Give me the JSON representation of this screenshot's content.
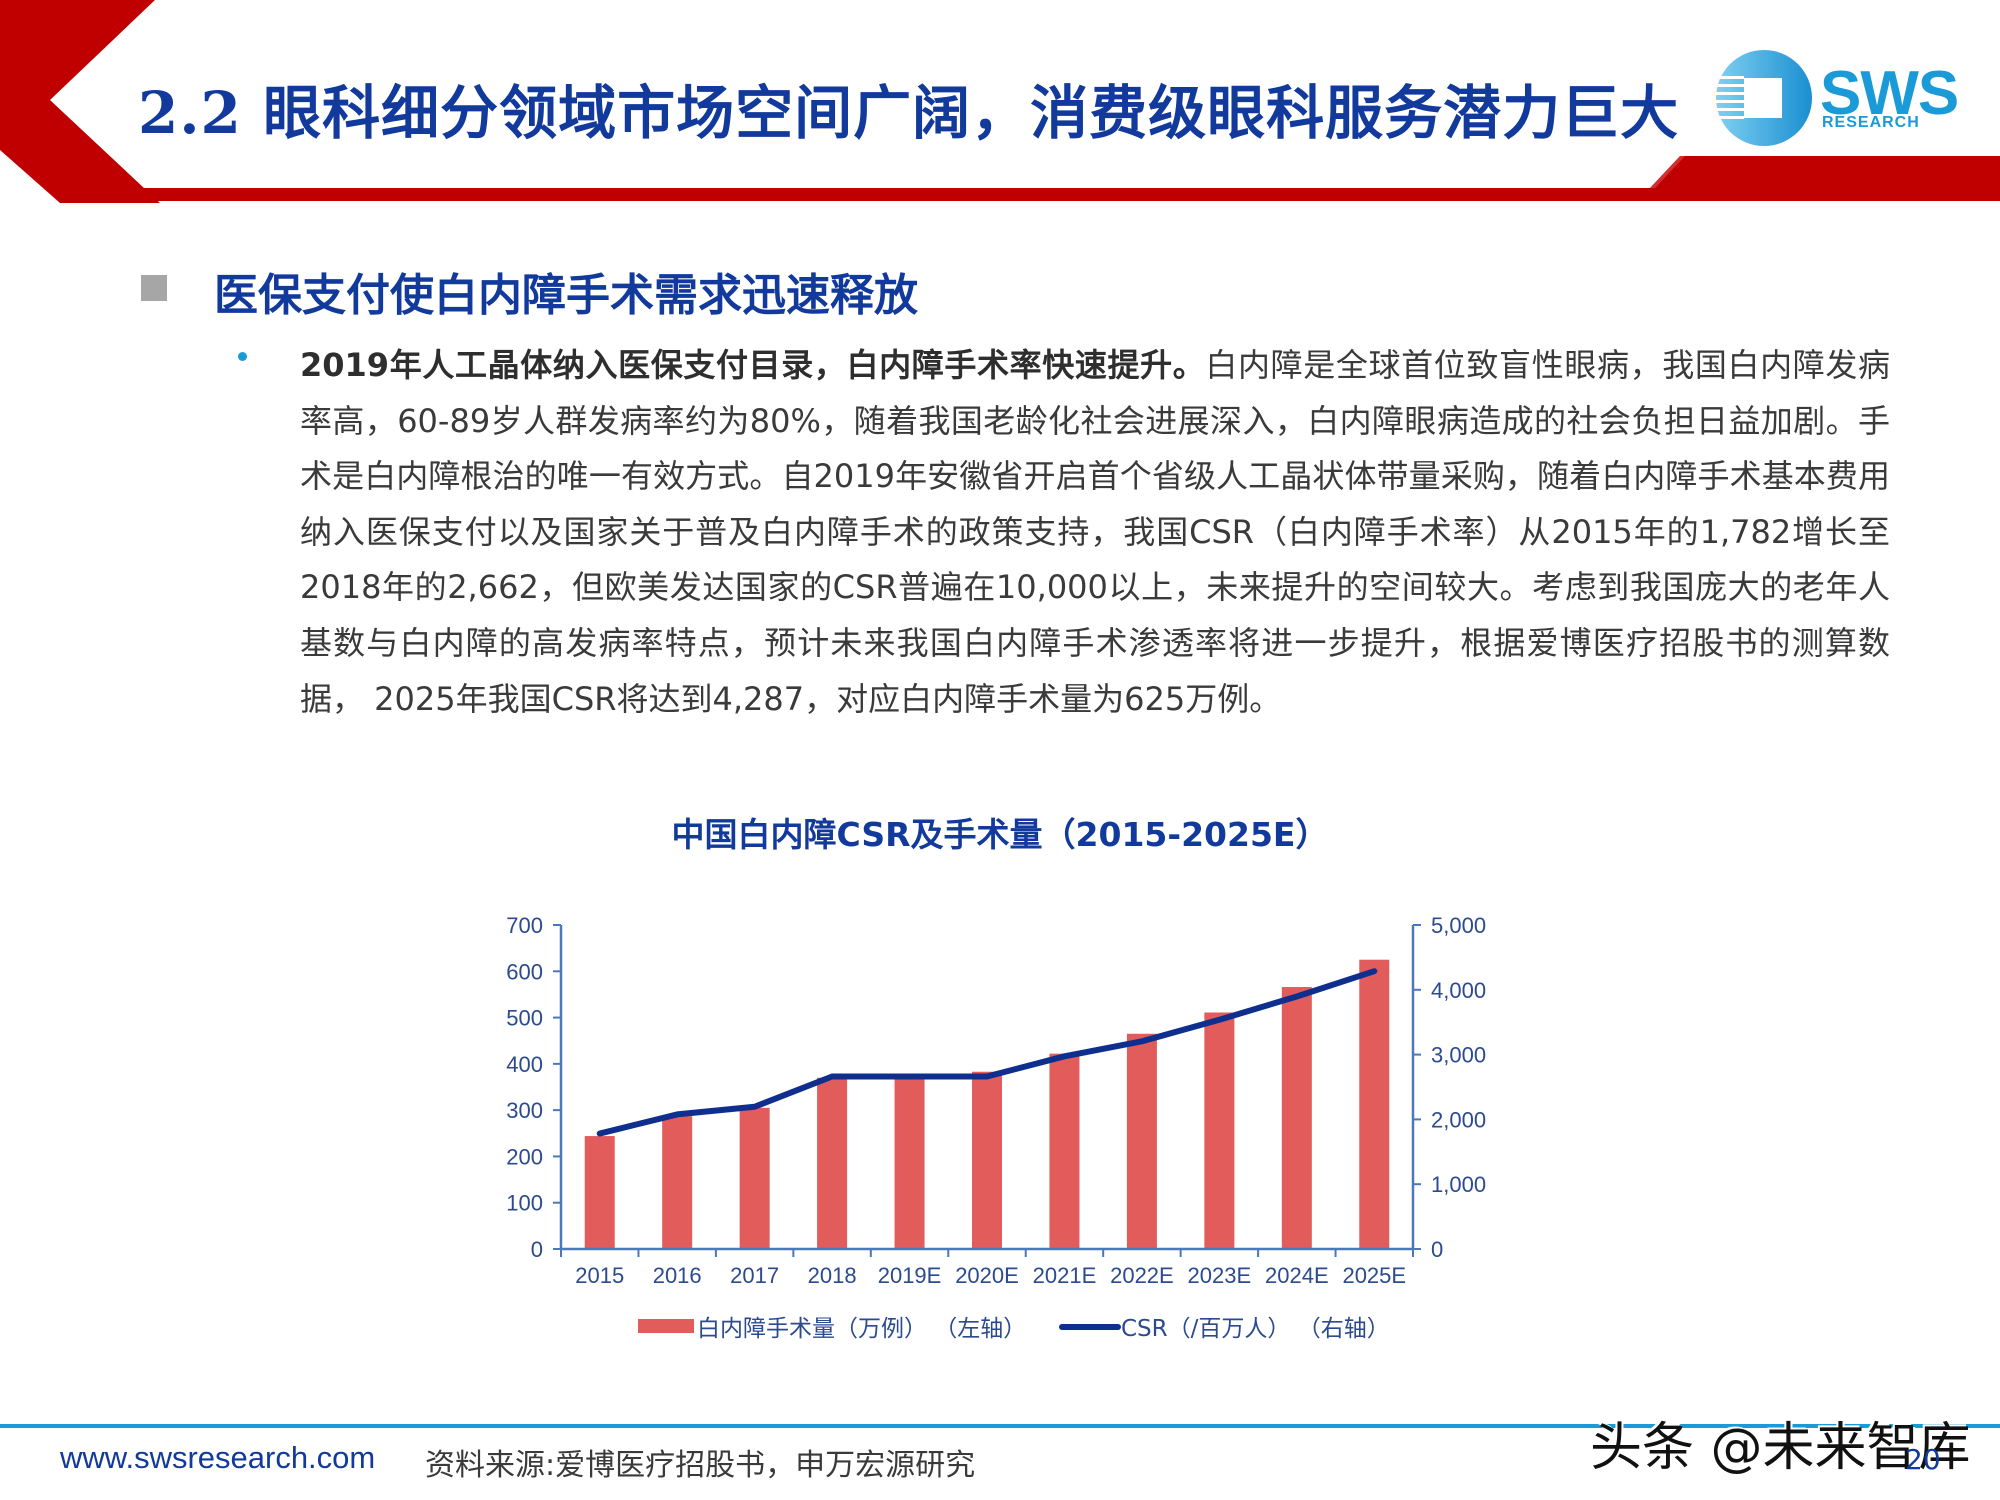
{
  "header": {
    "title": "2.2 眼科细分领域市场空间广阔，消费级眼科服务潜力巨大",
    "logo_main": "SWS",
    "logo_sub": "RESEARCH",
    "colors": {
      "accent_red": "#c00000",
      "title_blue": "#123a9c",
      "logo_blue": "#1a9ad6"
    }
  },
  "section": {
    "title": "医保支付使白内障手术需求迅速释放"
  },
  "paragraph": {
    "lead": "2019年人工晶体纳入医保支付目录，白内障手术率快速提升。",
    "body": "白内障是全球首位致盲性眼病，我国白内障发病率高，60-89岁人群发病率约为80%，随着我国老龄化社会进展深入，白内障眼病造成的社会负担日益加剧。手术是白内障根治的唯一有效方式。自2019年安徽省开启首个省级人工晶状体带量采购，随着白内障手术基本费用纳入医保支付以及国家关于普及白内障手术的政策支持，我国CSR（白内障手术率）从2015年的1,782增长至2018年的2,662，但欧美发达国家的CSR普遍在10,000以上，未来提升的空间较大。考虑到我国庞大的老年人基数与白内障的高发病率特点，预计未来我国白内障手术渗透率将进一步提升，根据爱博医疗招股书的测算数据， 2025年我国CSR将达到4,287，对应白内障手术量为625万例。"
  },
  "chart_data": {
    "type": "bar+line",
    "title": "中国白内障CSR及手术量（2015-2025E）",
    "categories": [
      "2015",
      "2016",
      "2017",
      "2018",
      "2019E",
      "2020E",
      "2021E",
      "2022E",
      "2023E",
      "2024E",
      "2025E"
    ],
    "series": [
      {
        "name": "白内障手术量（万例）（左轴）",
        "type": "bar",
        "axis": "left",
        "color": "#e25c5c",
        "values": [
          244,
          287,
          305,
          370,
          370,
          383,
          422,
          465,
          511,
          566,
          625
        ]
      },
      {
        "name": "CSR（/百万人）（右轴）",
        "type": "line",
        "axis": "right",
        "color": "#0f2f8f",
        "values": [
          1782,
          2077,
          2195,
          2662,
          2662,
          2662,
          2974,
          3205,
          3538,
          3897,
          4287
        ]
      }
    ],
    "left_axis": {
      "ylim": [
        0,
        700
      ],
      "ticks": [
        "0",
        "100",
        "200",
        "300",
        "400",
        "500",
        "600",
        "700"
      ]
    },
    "right_axis": {
      "ylim": [
        0,
        5000
      ],
      "ticks": [
        "0",
        "1,000",
        "2,000",
        "3,000",
        "4,000",
        "5,000"
      ]
    },
    "legend": {
      "position": "bottom"
    },
    "grid": false,
    "axis_color": "#4a78b8",
    "label_color": "#2b4a8f"
  },
  "footer": {
    "url": "www.swsresearch.com",
    "source": "资料来源:爱博医疗招股书，申万宏源研究",
    "watermark": "头条 @未来智库",
    "page": "20"
  }
}
